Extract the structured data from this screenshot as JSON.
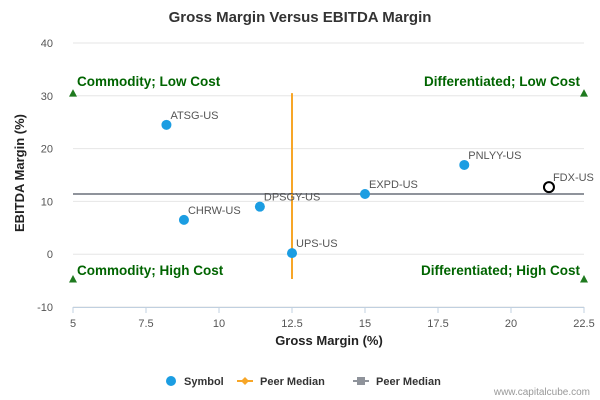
{
  "chart_data": {
    "type": "scatter",
    "title": "Gross Margin Versus EBITDA Margin",
    "xlabel": "Gross Margin (%)",
    "ylabel": "EBITDA Margin (%)",
    "xlim": [
      5,
      22.5
    ],
    "ylim": [
      -10,
      40
    ],
    "xticks": [
      "5",
      "7.5",
      "10",
      "12.5",
      "15",
      "17.5",
      "20",
      "22.5"
    ],
    "yticks": [
      "-10",
      "0",
      "10",
      "20",
      "30",
      "40"
    ],
    "grid": "horizontal",
    "points": [
      {
        "name": "ATSG-US",
        "x": 8.2,
        "y": 24.5,
        "highlight": false
      },
      {
        "name": "CHRW-US",
        "x": 8.8,
        "y": 6.5,
        "highlight": false
      },
      {
        "name": "DPSGY-US",
        "x": 11.4,
        "y": 9.0,
        "highlight": false
      },
      {
        "name": "UPS-US",
        "x": 12.5,
        "y": 0.2,
        "highlight": false
      },
      {
        "name": "EXPD-US",
        "x": 15.0,
        "y": 11.4,
        "highlight": false
      },
      {
        "name": "PNLYY-US",
        "x": 18.4,
        "y": 16.9,
        "highlight": false
      },
      {
        "name": "FDX-US",
        "x": 21.3,
        "y": 12.7,
        "highlight": true
      }
    ],
    "peer_median_x": {
      "value": 12.5,
      "y_from": -4.7,
      "y_to": 30.5
    },
    "peer_median_y": {
      "value": 11.4,
      "x_from": 5,
      "x_to": 22.5
    },
    "quadrants": [
      {
        "label": "Commodity; Low Cost",
        "pos": "top-left",
        "marker_x": 5,
        "marker_y": 30.5
      },
      {
        "label": "Differentiated; Low Cost",
        "pos": "top-right",
        "marker_x": 22.5,
        "marker_y": 30.5
      },
      {
        "label": "Commodity; High Cost",
        "pos": "bottom-left",
        "marker_x": 5,
        "marker_y": -4.7
      },
      {
        "label": "Differentiated; High Cost",
        "pos": "bottom-right",
        "marker_x": 22.5,
        "marker_y": -4.7
      }
    ],
    "legend": [
      {
        "label": "Symbol",
        "kind": "circle"
      },
      {
        "label": "Peer Median",
        "kind": "line-diamond"
      },
      {
        "label": "Peer Median",
        "kind": "line-square"
      }
    ],
    "credit": "www.capitalcube.com"
  },
  "colors": {
    "point": "#1b9de2",
    "highlight_stroke": "#000000",
    "median_x": "#f7a628",
    "median_y": "#8f939b",
    "quadrant_text": "#006400",
    "marker": "#1f7a1f",
    "grid": "#e6e6e6",
    "axis": "#c0d0e0"
  }
}
